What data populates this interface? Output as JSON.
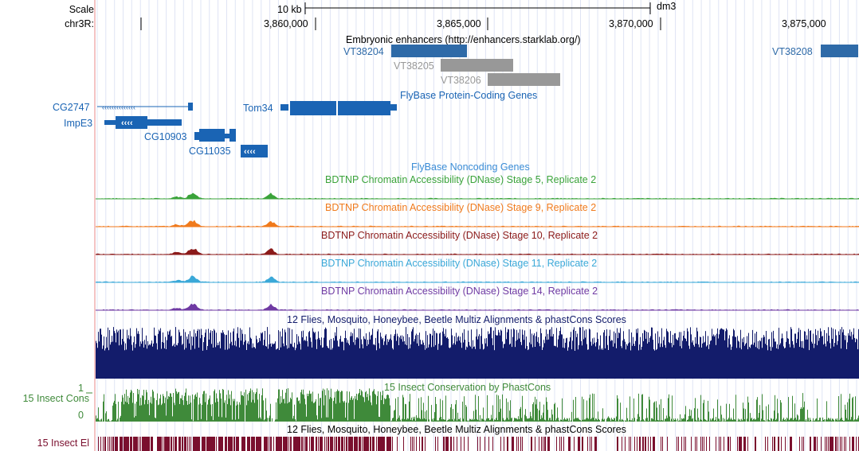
{
  "header": {
    "scale_label": "Scale",
    "chrom_label": "chr3R:",
    "scale_bar_label": "10 kb",
    "assembly": "dm3",
    "positions": [
      "3,860,000",
      "3,865,000",
      "3,870,000",
      "3,875,000"
    ]
  },
  "tracks": {
    "enhancers": {
      "title": "Embryonic enhancers (http://enhancers.starklab.org/)",
      "items": [
        "VT38204",
        "VT38205",
        "VT38206",
        "VT38208"
      ]
    },
    "genes": {
      "title": "FlyBase Protein-Coding Genes",
      "items": [
        "CG2747",
        "ImpE3",
        "CG10903",
        "CG11035",
        "Tom34"
      ]
    },
    "noncoding": {
      "title": "FlyBase Noncoding Genes"
    },
    "dnase": [
      {
        "title": "BDTNP Chromatin Accessibility (DNase) Stage 5, Replicate 2",
        "color": "#3aa33a"
      },
      {
        "title": "BDTNP Chromatin Accessibility (DNase) Stage 9, Replicate 2",
        "color": "#f07a1c"
      },
      {
        "title": "BDTNP Chromatin Accessibility (DNase) Stage 10, Replicate 2",
        "color": "#8b1a1a"
      },
      {
        "title": "BDTNP Chromatin Accessibility (DNase) Stage 11, Replicate 2",
        "color": "#3aa8d8"
      },
      {
        "title": "BDTNP Chromatin Accessibility (DNase) Stage 14, Replicate 2",
        "color": "#6f3aa3"
      }
    ],
    "multiz": {
      "title": "12 Flies, Mosquito, Honeybee, Beetle Multiz Alignments & phastCons Scores"
    },
    "phastcons": {
      "title": "15 Insect Conservation by PhastCons",
      "side_label": "15 Insect Cons",
      "axis_max": "1",
      "axis_min": "0"
    },
    "elements": {
      "title": "12 Flies, Mosquito, Honeybee, Beetle Multiz Alignments & phastCons Scores",
      "side_label": "15 Insect El"
    }
  },
  "colors": {
    "gene_blue": "#1a64b4",
    "enhancer_blue": "#2e6aa8",
    "enhancer_gray": "#989898",
    "multiz_navy": "#131c6b",
    "phastcons_green": "#3f8a3a",
    "elements_maroon": "#7a0f2e"
  }
}
